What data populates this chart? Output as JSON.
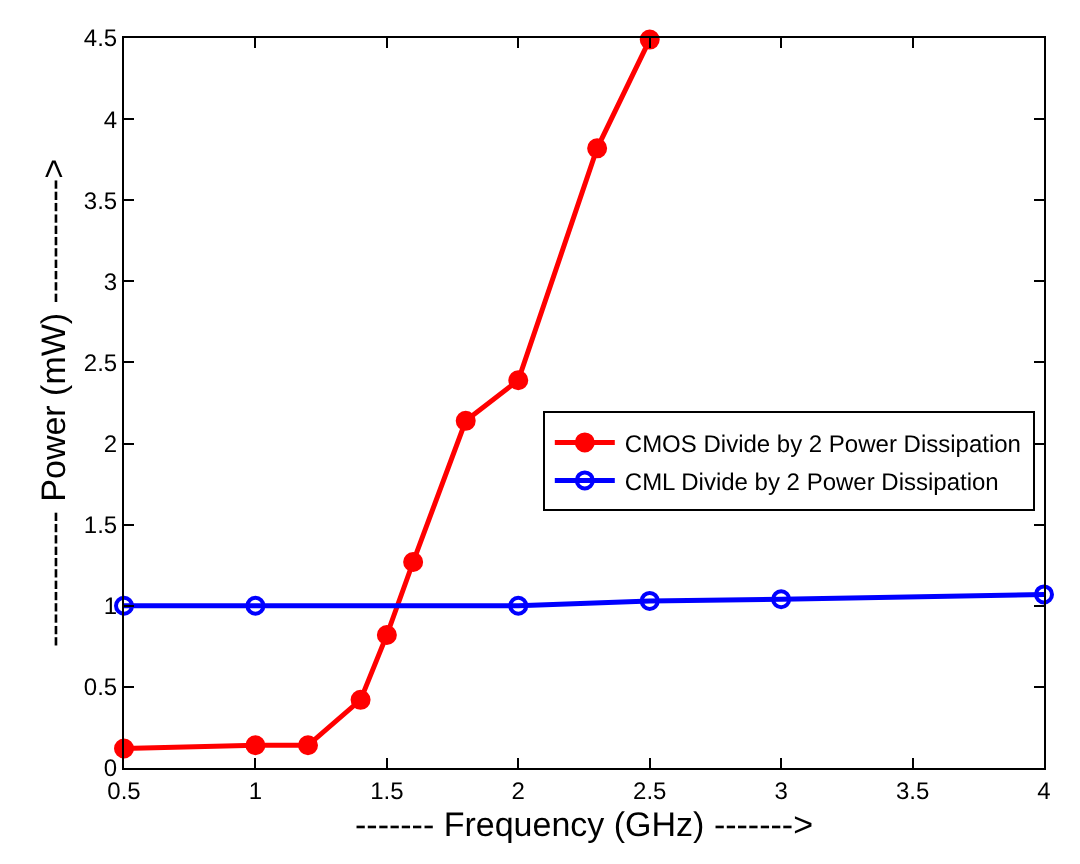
{
  "chart_data": {
    "type": "line",
    "xlabel": "------- Frequency (GHz) ------->",
    "ylabel": "------------ Power (mW) ----------->",
    "xlim": [
      0.5,
      4
    ],
    "xticks": [
      0.5,
      1,
      1.5,
      2,
      2.5,
      3,
      3.5,
      4
    ],
    "ylim": [
      0,
      4.5
    ],
    "yticks": [
      0,
      0.5,
      1,
      1.5,
      2,
      2.5,
      3,
      3.5,
      4,
      4.5
    ],
    "legend": "right",
    "line_style": "solid",
    "series": [
      {
        "name": "CMOS Divide by 2 Power Dissipation",
        "color": "#ff0000",
        "marker": "circle",
        "x": [
          0.5,
          1,
          1.2,
          1.4,
          1.5,
          1.6,
          1.8,
          2,
          2.3,
          2.5
        ],
        "values": [
          0.12,
          0.14,
          0.14,
          0.42,
          0.82,
          1.27,
          2.14,
          2.39,
          3.82,
          4.49
        ]
      },
      {
        "name": "CML Divide by 2 Power Dissipation",
        "color": "#0000ff",
        "marker": "circle-open",
        "x": [
          0.5,
          1,
          2,
          2.5,
          3,
          4
        ],
        "values": [
          1.0,
          1.0,
          1.0,
          1.03,
          1.04,
          1.07
        ]
      }
    ]
  }
}
